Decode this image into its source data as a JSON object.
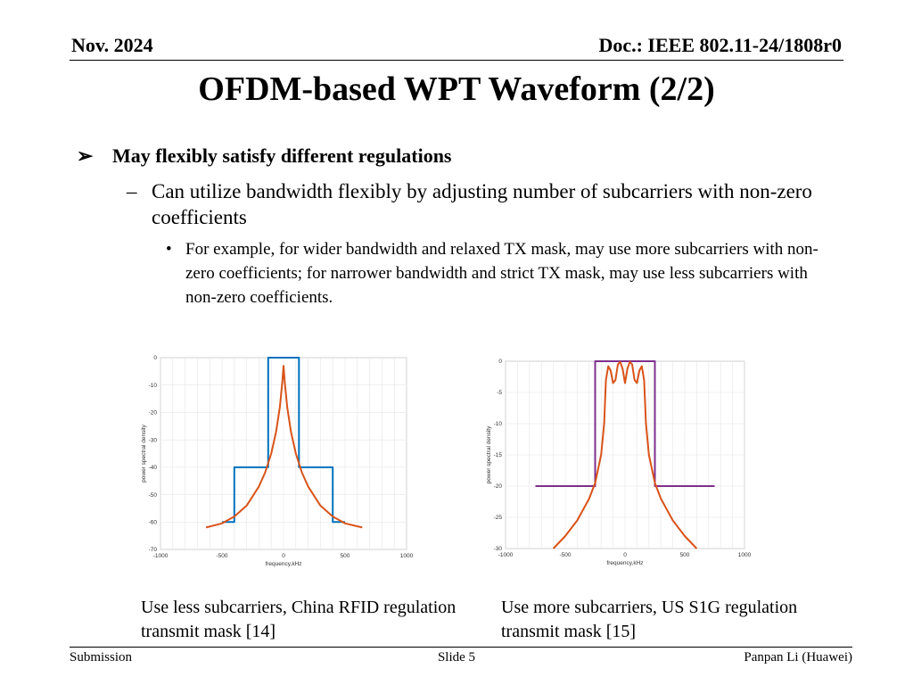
{
  "header": {
    "date": "Nov. 2024",
    "doc": "Doc.: IEEE 802.11-24/1808r0"
  },
  "title": "OFDM-based WPT Waveform (2/2)",
  "body": {
    "bullet1": "May flexibly satisfy different regulations",
    "sub1": "Can utilize bandwidth flexibly by adjusting number of subcarriers with non-zero coefficients",
    "sub2": "For example, for wider bandwidth and relaxed TX mask, may use more subcarriers with non-zero coefficients; for narrower bandwidth and strict TX mask, may use less subcarriers with non-zero coefficients."
  },
  "captions": {
    "left": "Use less subcarriers, China RFID regulation transmit mask [14]",
    "right": "Use more subcarriers, US S1G regulation transmit mask [15]"
  },
  "footer": {
    "left": "Submission",
    "center": "Slide 5",
    "right": "Panpan Li (Huawei)"
  },
  "colors": {
    "mask_left": "#0072BD",
    "mask_right": "#7E2F8E",
    "psd": "#D95319",
    "grid": "#e6e6e6"
  },
  "chart_data": [
    {
      "type": "line",
      "xlabel": "frequency,kHz",
      "ylabel": "power spectral density",
      "xlim": [
        -1000,
        1000
      ],
      "ylim": [
        -70,
        0
      ],
      "xticks": [
        -1000,
        -500,
        0,
        500,
        1000
      ],
      "yticks": [
        0,
        -10,
        -20,
        -30,
        -40,
        -50,
        -60,
        -70
      ],
      "grid": true,
      "series": [
        {
          "role": "mask",
          "color_key": "mask_left",
          "x": [
            -500,
            -400,
            -400,
            -125,
            -125,
            125,
            125,
            400,
            400,
            500
          ],
          "y": [
            -60,
            -60,
            -40,
            -40,
            0,
            0,
            -40,
            -40,
            -60,
            -60
          ]
        },
        {
          "role": "psd",
          "color_key": "psd",
          "x": [
            -630,
            -500,
            -400,
            -300,
            -200,
            -150,
            -100,
            -60,
            -30,
            -10,
            0,
            10,
            30,
            60,
            100,
            150,
            200,
            300,
            400,
            500,
            640
          ],
          "y": [
            -62,
            -60.5,
            -58,
            -54,
            -47,
            -42,
            -35,
            -27,
            -18,
            -9,
            -3,
            -9,
            -18,
            -27,
            -35,
            -42,
            -47,
            -54,
            -58,
            -60.5,
            -62
          ]
        }
      ]
    },
    {
      "type": "line",
      "xlabel": "frequency,kHz",
      "ylabel": "power spectral density",
      "xlim": [
        -1000,
        1000
      ],
      "ylim": [
        -30,
        0
      ],
      "xticks": [
        -1000,
        -500,
        0,
        500,
        1000
      ],
      "yticks": [
        0,
        -5,
        -10,
        -15,
        -20,
        -25,
        -30
      ],
      "grid": true,
      "series": [
        {
          "role": "mask",
          "color_key": "mask_right",
          "x": [
            -750,
            -250,
            -250,
            250,
            250,
            750
          ],
          "y": [
            -20,
            -20,
            0,
            0,
            -20,
            -20
          ]
        },
        {
          "role": "psd",
          "color_key": "psd",
          "x": [
            -600,
            -500,
            -400,
            -300,
            -250,
            -200,
            -175,
            -160,
            -140,
            -120,
            -100,
            -80,
            -60,
            -40,
            -20,
            0,
            20,
            40,
            60,
            80,
            100,
            120,
            140,
            160,
            175,
            200,
            250,
            300,
            400,
            500,
            600
          ],
          "y": [
            -30,
            -28,
            -25.5,
            -22,
            -19.5,
            -15,
            -10,
            -3,
            -0.8,
            -1.5,
            -3.5,
            -3,
            -0.5,
            -0.1,
            -1.2,
            -3.5,
            -1.2,
            -0.1,
            -0.5,
            -3,
            -3.5,
            -1.5,
            -0.8,
            -3,
            -10,
            -15,
            -19.5,
            -22,
            -25.5,
            -28,
            -30
          ]
        }
      ]
    }
  ]
}
